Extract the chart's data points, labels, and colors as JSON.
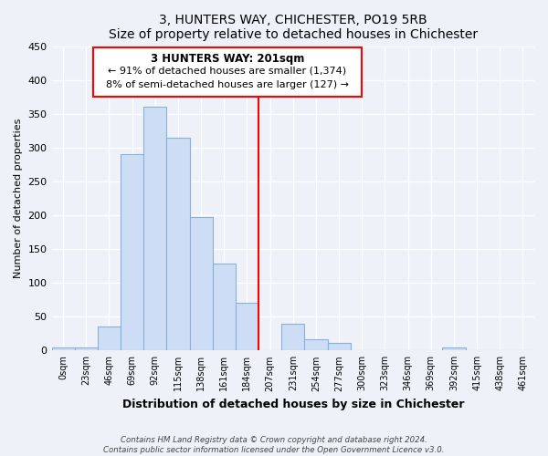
{
  "title": "3, HUNTERS WAY, CHICHESTER, PO19 5RB",
  "subtitle": "Size of property relative to detached houses in Chichester",
  "xlabel": "Distribution of detached houses by size in Chichester",
  "ylabel": "Number of detached properties",
  "bin_labels": [
    "0sqm",
    "23sqm",
    "46sqm",
    "69sqm",
    "92sqm",
    "115sqm",
    "138sqm",
    "161sqm",
    "184sqm",
    "207sqm",
    "231sqm",
    "254sqm",
    "277sqm",
    "300sqm",
    "323sqm",
    "346sqm",
    "369sqm",
    "392sqm",
    "415sqm",
    "438sqm",
    "461sqm"
  ],
  "bar_heights": [
    5,
    5,
    35,
    290,
    360,
    315,
    197,
    128,
    70,
    0,
    40,
    17,
    11,
    0,
    0,
    0,
    0,
    5,
    0,
    0,
    0
  ],
  "bar_color": "#cdddf5",
  "bar_edge_color": "#8ab0d8",
  "marker_line_x_label": "207sqm",
  "marker_line_label": "3 HUNTERS WAY: 201sqm",
  "annotation_line1": "← 91% of detached houses are smaller (1,374)",
  "annotation_line2": "8% of semi-detached houses are larger (127) →",
  "ylim": [
    0,
    450
  ],
  "yticks": [
    0,
    50,
    100,
    150,
    200,
    250,
    300,
    350,
    400,
    450
  ],
  "footer_line1": "Contains HM Land Registry data © Crown copyright and database right 2024.",
  "footer_line2": "Contains public sector information licensed under the Open Government Licence v3.0.",
  "background_color": "#eef2f8",
  "grid_color": "#ffffff",
  "title_fontsize": 11,
  "subtitle_fontsize": 10
}
